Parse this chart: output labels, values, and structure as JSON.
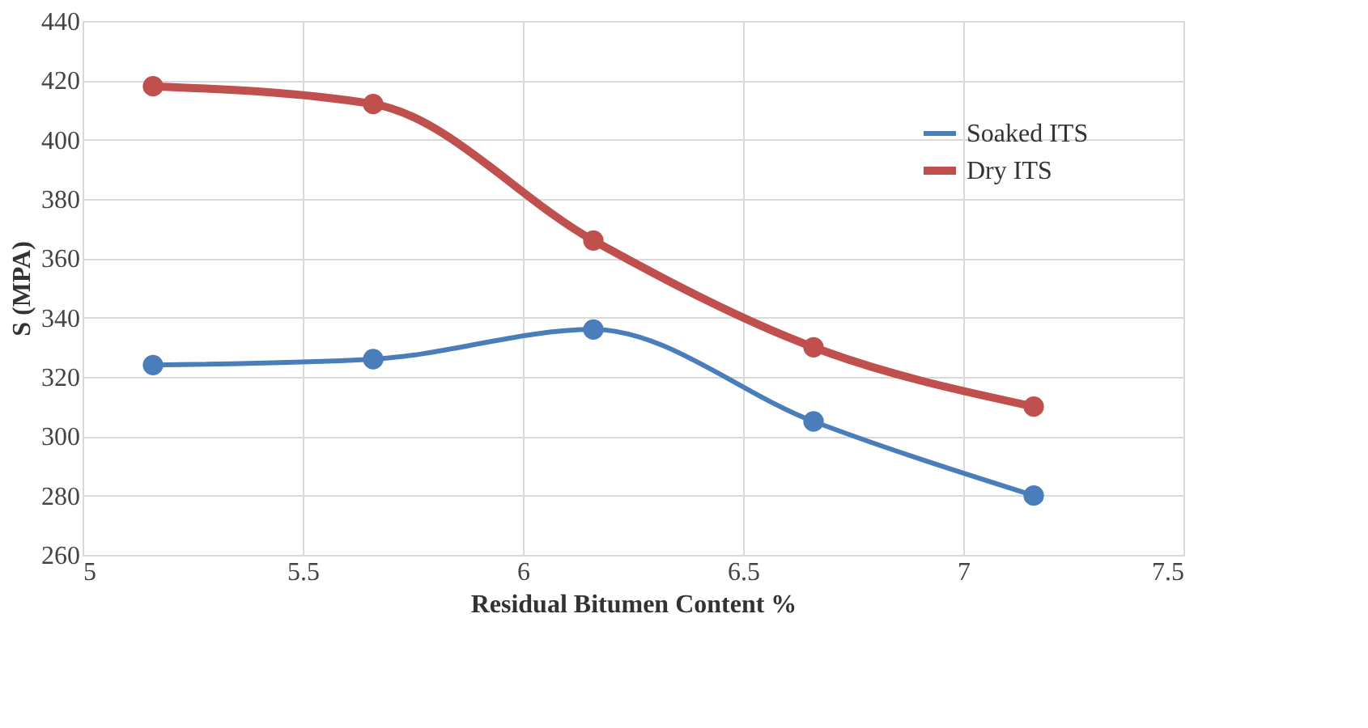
{
  "chart_data": {
    "type": "line",
    "xlabel": "Residual Bitumen Content %",
    "ylabel": "S (MPA)",
    "x": [
      5.16,
      5.66,
      6.16,
      6.66,
      7.16
    ],
    "series": [
      {
        "name": "Soaked ITS",
        "color": "#4a7ebb",
        "values": [
          324,
          326,
          336,
          305,
          280
        ]
      },
      {
        "name": "Dry ITS",
        "color": "#c0504d",
        "values": [
          418,
          412,
          366,
          330,
          310
        ]
      }
    ],
    "xlim": [
      5,
      7.5
    ],
    "xticks": [
      5,
      5.5,
      6,
      6.5,
      7,
      7.5
    ],
    "ylim": [
      260,
      440
    ],
    "yticks": [
      260,
      280,
      300,
      320,
      340,
      360,
      380,
      400,
      420,
      440
    ],
    "grid": true,
    "legend": "top right",
    "marker": "circle"
  }
}
